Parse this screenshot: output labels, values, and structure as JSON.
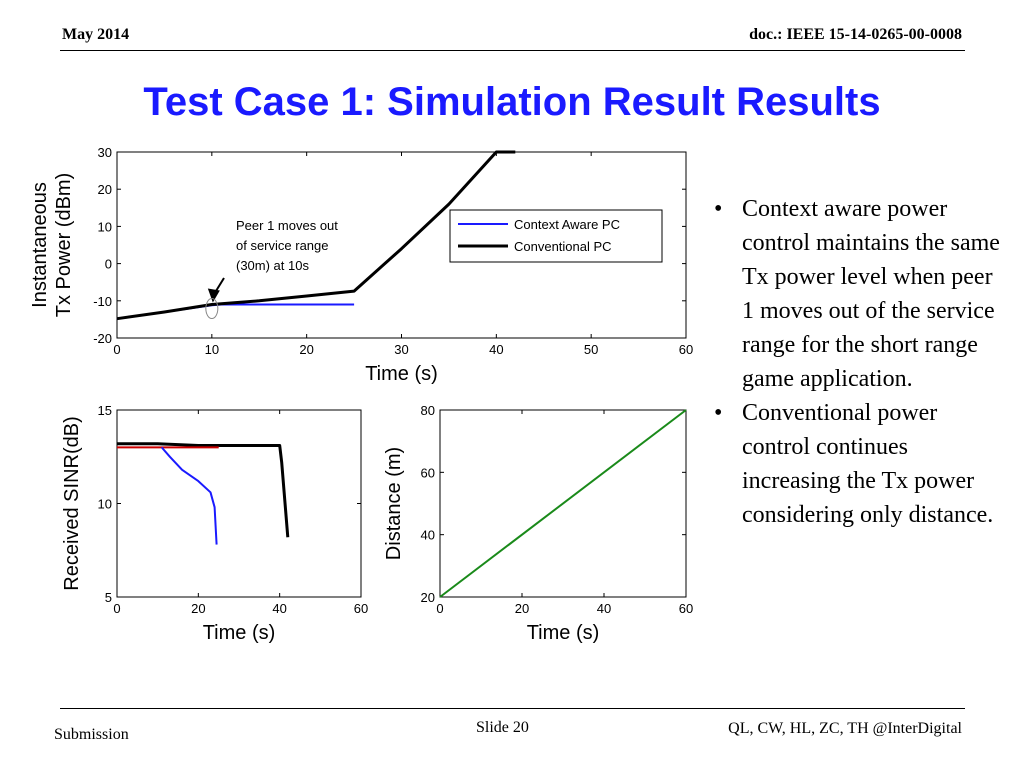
{
  "header": {
    "date": "May 2014",
    "doc_id": "doc.: IEEE 15-14-0265-00-0008"
  },
  "slide": {
    "title": "Test Case 1: Simulation Result Results"
  },
  "bullets": [
    "Context aware power control maintains the same Tx power level when peer 1 moves out of the service range for the short range game application.",
    "Conventional power control continues increasing the Tx power considering only distance."
  ],
  "footer": {
    "left": "Submission",
    "center": "Slide 20",
    "right": "QL, CW, HL, ZC, TH @InterDigital"
  },
  "colors": {
    "title": "#1a1aff",
    "context_aware": "#1a1aff",
    "conventional": "#000000",
    "red": "#cc0000",
    "distance": "#1a8a1a"
  },
  "chart_data": [
    {
      "type": "line",
      "title": "",
      "xlabel": "Time (s)",
      "ylabel_lines": [
        "Instantaneous",
        "Tx Power (dBm)"
      ],
      "xlim": [
        0,
        60
      ],
      "ylim": [
        -20,
        30
      ],
      "xticks": [
        0,
        10,
        20,
        30,
        40,
        50,
        60
      ],
      "yticks": [
        -20,
        -10,
        0,
        10,
        20,
        30
      ],
      "legend": {
        "position": "top-right"
      },
      "series": [
        {
          "name": "Context Aware PC",
          "color": "#1a1aff",
          "x": [
            0,
            5,
            10,
            11,
            25
          ],
          "y": [
            -14.8,
            -13,
            -11.2,
            -11,
            -11
          ]
        },
        {
          "name": "Conventional PC",
          "color": "#000000",
          "x": [
            0,
            5,
            10,
            15,
            20,
            25,
            30,
            35,
            40,
            42
          ],
          "y": [
            -14.8,
            -13,
            -11,
            -10,
            -8.7,
            -7.4,
            4,
            16,
            30,
            30
          ]
        }
      ],
      "annotation": {
        "lines": [
          "Peer 1 moves out",
          "of service range",
          "(30m) at 10s"
        ],
        "x": 10,
        "y": -11
      }
    },
    {
      "type": "line",
      "title": "",
      "xlabel": "Time (s)",
      "ylabel": "Received SINR(dB)",
      "xlim": [
        0,
        60
      ],
      "ylim": [
        5,
        15
      ],
      "xticks": [
        0,
        20,
        40,
        60
      ],
      "yticks": [
        5,
        10,
        15
      ],
      "series": [
        {
          "color": "#000000",
          "x": [
            0,
            10,
            20,
            30,
            40,
            40.5,
            42
          ],
          "y": [
            13.2,
            13.2,
            13.1,
            13.1,
            13.1,
            12.2,
            8.2
          ]
        },
        {
          "color": "#cc0000",
          "x": [
            0,
            25
          ],
          "y": [
            13,
            13
          ]
        },
        {
          "color": "#1a1aff",
          "x": [
            11,
            13,
            16,
            20,
            23,
            24,
            24.5
          ],
          "y": [
            13.0,
            12.5,
            11.8,
            11.2,
            10.6,
            9.8,
            7.8
          ]
        }
      ]
    },
    {
      "type": "line",
      "title": "",
      "xlabel": "Time (s)",
      "ylabel": "Distance (m)",
      "xlim": [
        0,
        60
      ],
      "ylim": [
        20,
        80
      ],
      "xticks": [
        0,
        20,
        40,
        60
      ],
      "yticks": [
        20,
        40,
        60,
        80
      ],
      "series": [
        {
          "color": "#1a8a1a",
          "x": [
            0,
            60
          ],
          "y": [
            20,
            80
          ]
        }
      ]
    }
  ]
}
